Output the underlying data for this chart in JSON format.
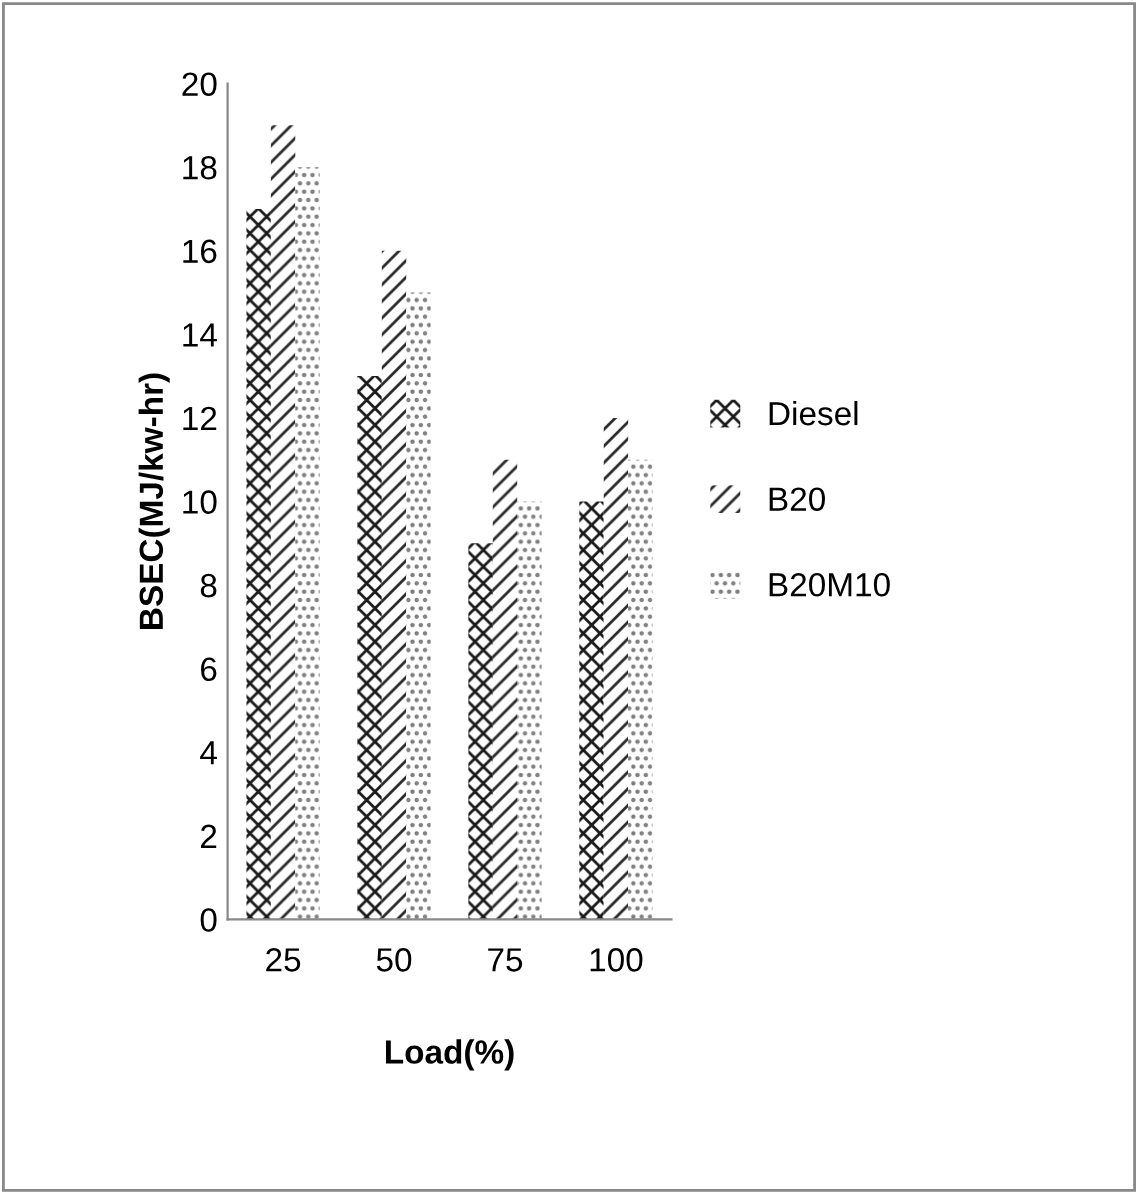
{
  "chart_data": {
    "type": "bar",
    "xlabel": "Load(%)",
    "ylabel": "BSEC(MJ/kw-hr)",
    "categories": [
      "25",
      "50",
      "75",
      "100"
    ],
    "series": [
      {
        "name": "Diesel",
        "color": "#1a1a1a",
        "values": [
          17,
          13,
          9,
          10
        ]
      },
      {
        "name": "B20",
        "color": "#2a2a2a",
        "values": [
          19,
          16,
          11,
          12
        ]
      },
      {
        "name": "B20M10",
        "color": "#7a7a7a",
        "values": [
          18,
          15,
          10,
          11
        ]
      }
    ],
    "ylim": [
      0,
      20
    ],
    "yticks": [
      0,
      2,
      4,
      6,
      8,
      10,
      12,
      14,
      16,
      18,
      20
    ],
    "grid": false,
    "legend": "right"
  }
}
